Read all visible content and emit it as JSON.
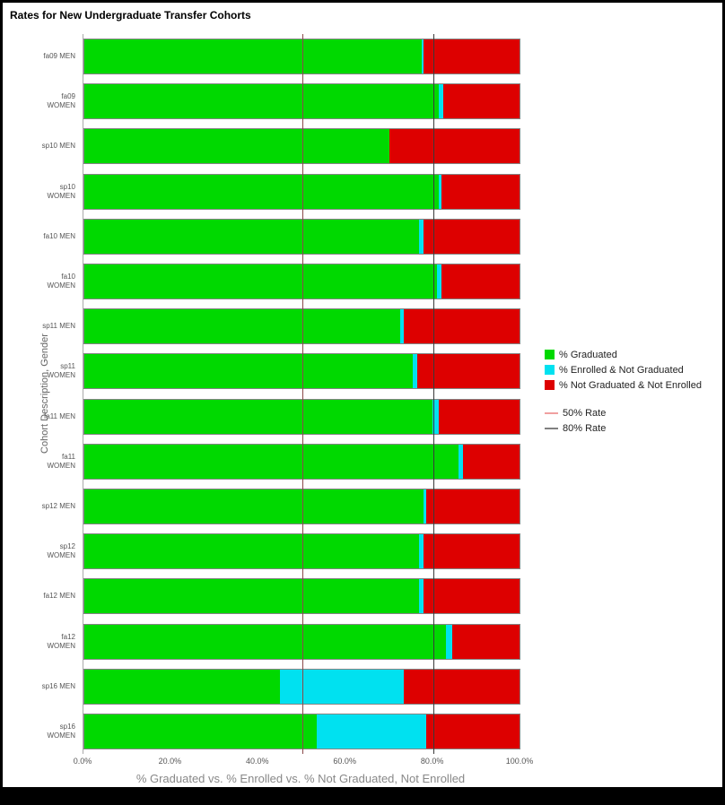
{
  "title": "Rates for New Undergraduate Transfer Cohorts",
  "chart_data": {
    "type": "bar",
    "orientation": "horizontal",
    "stacked": true,
    "title": "Rates for New Undergraduate Transfer Cohorts",
    "xlabel": "% Graduated vs. % Enrolled vs. % Not Graduated, Not Enrolled",
    "ylabel": "Cohort Description, Gender",
    "xlim": [
      0,
      100
    ],
    "x_ticks": [
      "0.0%",
      "20.0%",
      "40.0%",
      "60.0%",
      "80.0%",
      "100.0%"
    ],
    "grid": false,
    "legend_position": "right",
    "series_names": [
      "% Graduated",
      "% Enrolled & Not Graduated",
      "% Not Graduated & Not Enrolled"
    ],
    "series_colors": [
      "#00d900",
      "#00e1f0",
      "#dd0000"
    ],
    "reference_lines": [
      {
        "label": "50% Rate",
        "value": 50,
        "line_color": "#8b4a4a",
        "legend_color": "#f0a0a0"
      },
      {
        "label": "80% Rate",
        "value": 80,
        "line_color": "#3a3a3a",
        "legend_color": "#808080"
      }
    ],
    "categories": [
      "fa09 MEN",
      "fa09 WOMEN",
      "sp10 MEN",
      "sp10 WOMEN",
      "fa10 MEN",
      "fa10 WOMEN",
      "sp11 MEN",
      "sp11 WOMEN",
      "fa11 MEN",
      "fa11 WOMEN",
      "sp12 MEN",
      "sp12 WOMEN",
      "fa12 MEN",
      "fa12 WOMEN",
      "sp16 MEN",
      "sp16 WOMEN"
    ],
    "rows": [
      {
        "label_lines": [
          "fa09 MEN"
        ],
        "values": [
          77.5,
          0.5,
          22
        ]
      },
      {
        "label_lines": [
          "fa09",
          "WOMEN"
        ],
        "values": [
          81.5,
          1,
          17.5
        ]
      },
      {
        "label_lines": [
          "sp10 MEN"
        ],
        "values": [
          70,
          0,
          30
        ]
      },
      {
        "label_lines": [
          "sp10",
          "WOMEN"
        ],
        "values": [
          81.5,
          0.5,
          18
        ]
      },
      {
        "label_lines": [
          "fa10 MEN"
        ],
        "values": [
          77,
          1,
          22
        ]
      },
      {
        "label_lines": [
          "fa10",
          "WOMEN"
        ],
        "values": [
          81,
          1,
          18
        ]
      },
      {
        "label_lines": [
          "sp11 MEN"
        ],
        "values": [
          72.5,
          1,
          26.5
        ]
      },
      {
        "label_lines": [
          "sp11",
          "WOMEN"
        ],
        "values": [
          75.5,
          1,
          23.5
        ]
      },
      {
        "label_lines": [
          "fa11 MEN"
        ],
        "values": [
          80,
          1.5,
          18.5
        ]
      },
      {
        "label_lines": [
          "fa11",
          "WOMEN"
        ],
        "values": [
          86,
          1,
          13
        ]
      },
      {
        "label_lines": [
          "sp12 MEN"
        ],
        "values": [
          78,
          0.5,
          21.5
        ]
      },
      {
        "label_lines": [
          "sp12",
          "WOMEN"
        ],
        "values": [
          77,
          1,
          22
        ]
      },
      {
        "label_lines": [
          "fa12 MEN"
        ],
        "values": [
          77,
          1,
          22
        ]
      },
      {
        "label_lines": [
          "fa12",
          "WOMEN"
        ],
        "values": [
          83,
          1.5,
          15.5
        ]
      },
      {
        "label_lines": [
          "sp16 MEN"
        ],
        "values": [
          45,
          28.5,
          26.5
        ]
      },
      {
        "label_lines": [
          "sp16",
          "WOMEN"
        ],
        "values": [
          53.5,
          25,
          21.5
        ]
      }
    ]
  }
}
